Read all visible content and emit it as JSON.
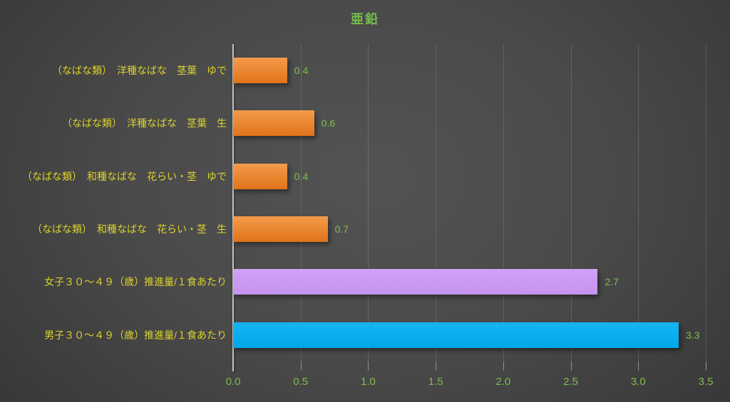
{
  "chart_data": {
    "type": "bar",
    "orientation": "horizontal",
    "title": "亜鉛",
    "categories": [
      "（なばな類）　洋種なばな　茎葉　ゆで",
      "（なばな類）　洋種なばな　茎葉　生",
      "（なばな類）　和種なばな　花らい・茎　ゆで",
      "（なばな類）　和種なばな　花らい・茎　生",
      "女子３０～４９（歳）推進量/１食あたり",
      "男子３０～４９（歳）推進量/１食あたり"
    ],
    "values": [
      0.4,
      0.6,
      0.4,
      0.7,
      2.7,
      3.3
    ],
    "value_labels": [
      "0.4",
      "0.6",
      "0.4",
      "0.7",
      "2.7",
      "3.3"
    ],
    "bar_colors": [
      {
        "top": "#f49b4c",
        "bottom": "#e07319"
      },
      {
        "top": "#f49b4c",
        "bottom": "#e07319"
      },
      {
        "top": "#f49b4c",
        "bottom": "#e07319"
      },
      {
        "top": "#f49b4c",
        "bottom": "#e07319"
      },
      {
        "top": "#cfa1f7",
        "bottom": "#c493ef"
      },
      {
        "top": "#16b3f2",
        "bottom": "#00a9ea"
      }
    ],
    "x_ticks": [
      0.0,
      0.5,
      1.0,
      1.5,
      2.0,
      2.5,
      3.0,
      3.5
    ],
    "x_tick_labels": [
      "0.0",
      "0.5",
      "1.0",
      "1.5",
      "2.0",
      "2.5",
      "3.0",
      "3.5"
    ],
    "xlim": [
      0,
      3.5
    ],
    "grid": "vertical",
    "legend": "none",
    "colors": {
      "title_text": "#74bc4c",
      "category_text": "#ddd32c",
      "value_text": "#7ebe50",
      "axis_line": "#c6c6c6"
    }
  }
}
